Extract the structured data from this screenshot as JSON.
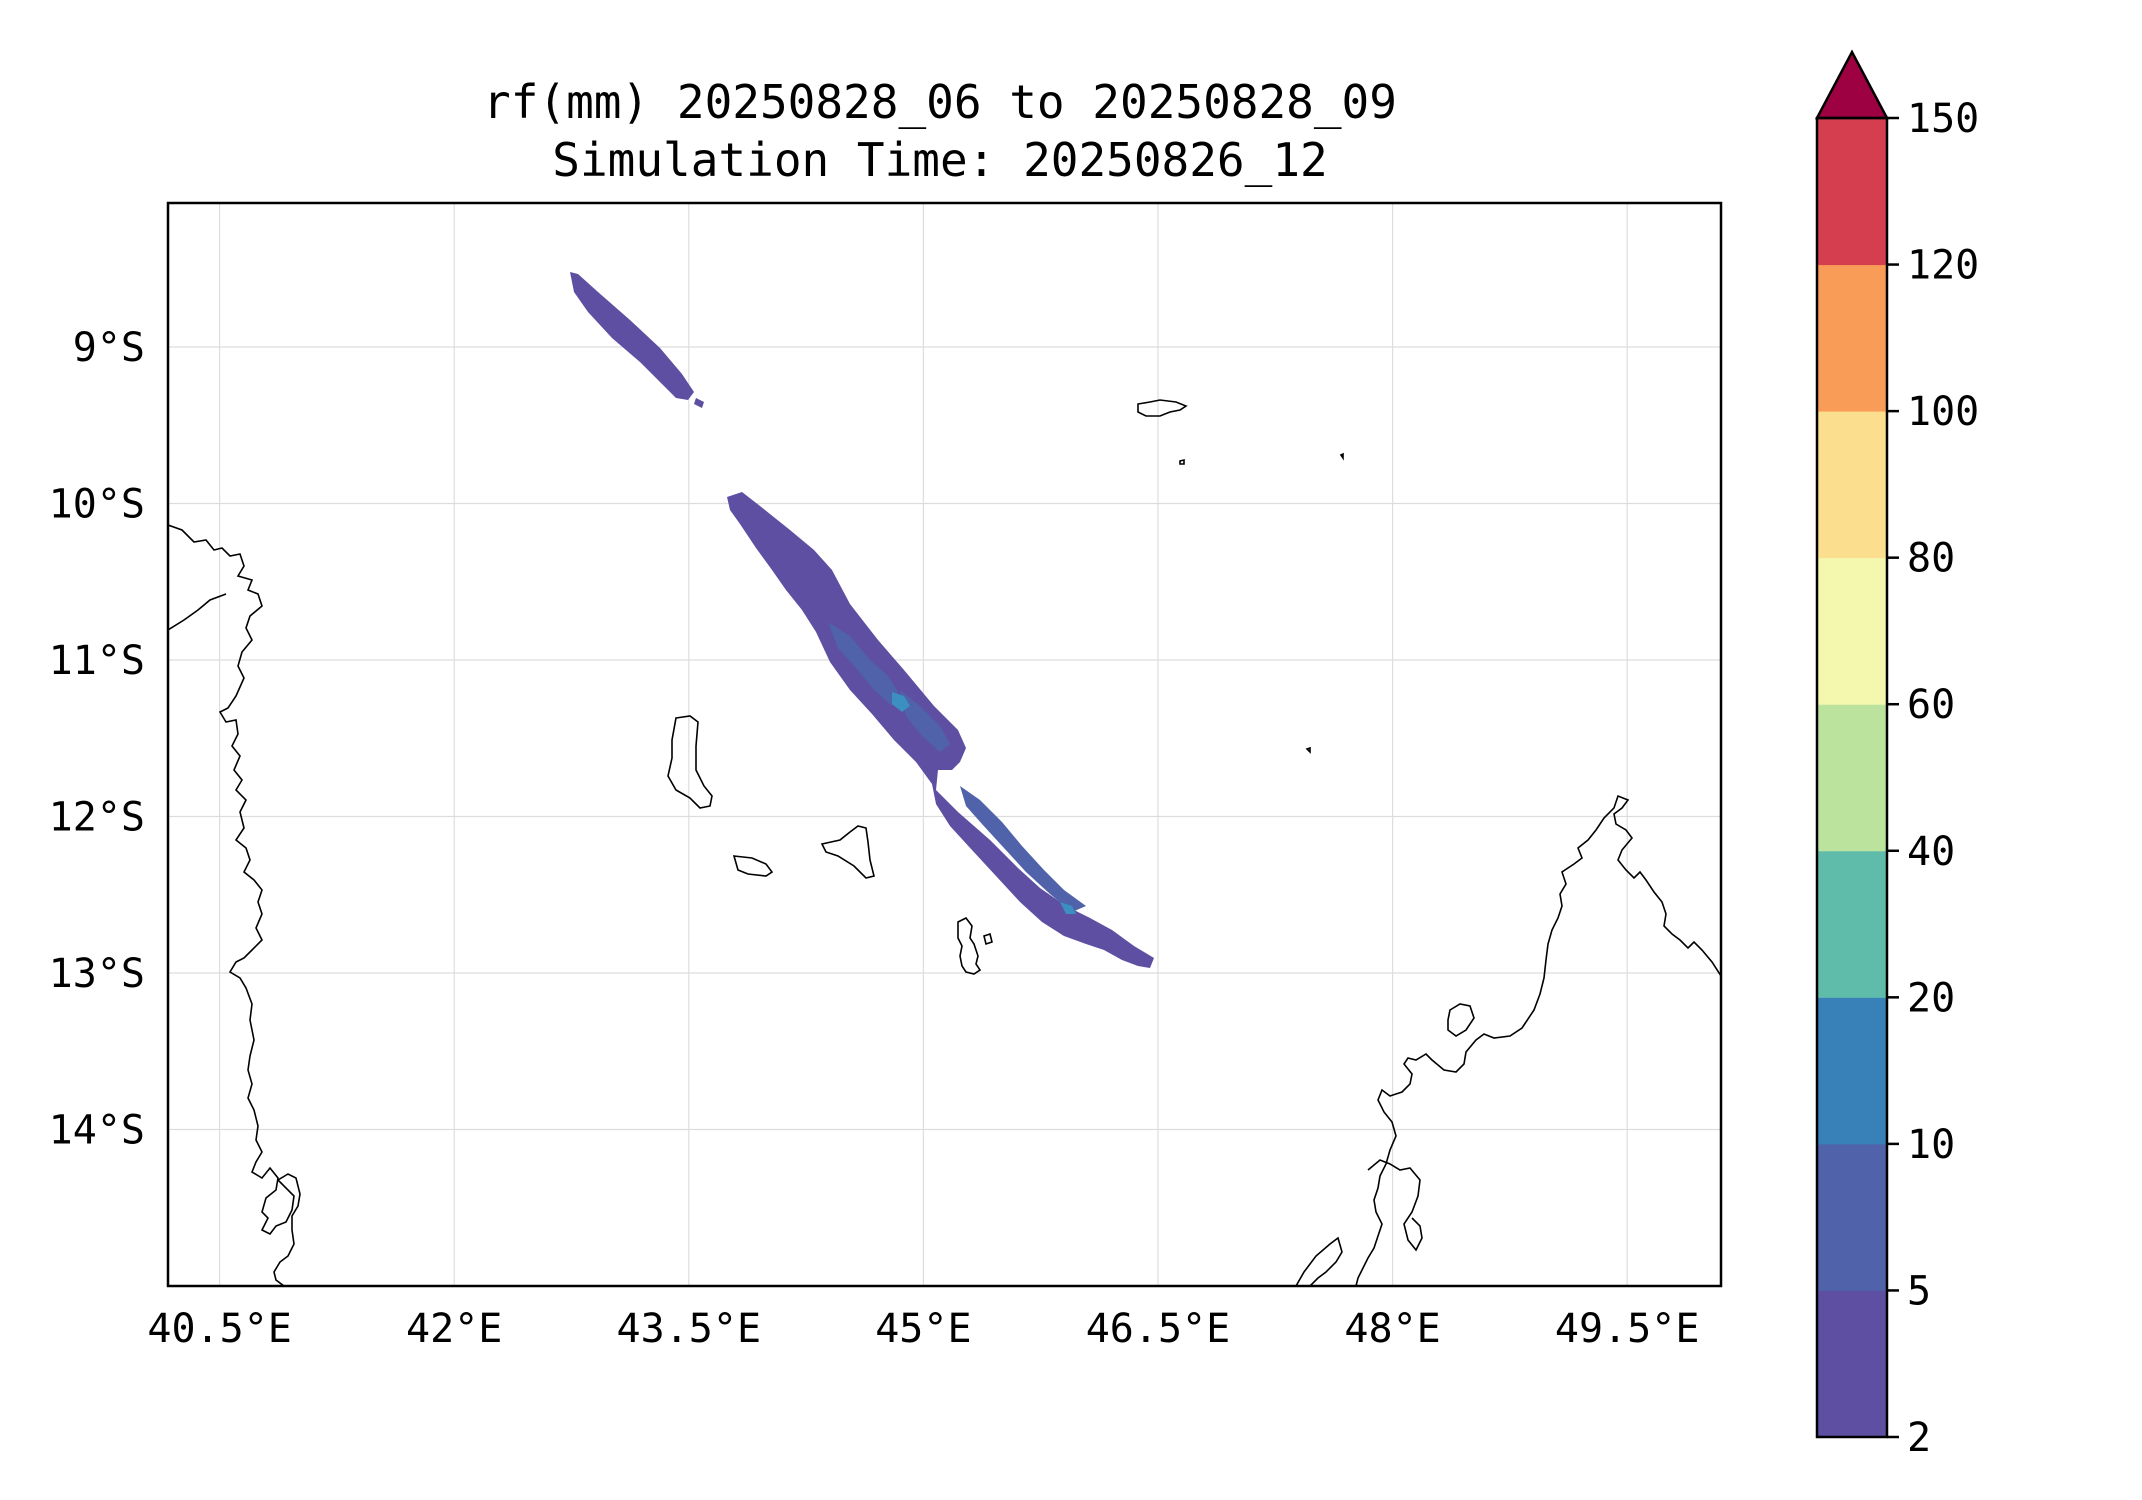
{
  "title": {
    "line1": "rf(mm) 20250828_06 to 20250828_09",
    "line2": "Simulation Time: 20250826_12"
  },
  "map": {
    "lon_range": [
      40.17,
      50.1
    ],
    "lat_range": [
      -15.0,
      -8.08
    ],
    "lon_ticks": [
      40.5,
      42,
      43.5,
      45,
      46.5,
      48,
      49.5
    ],
    "lon_tick_labels": [
      "40.5°E",
      "42°E",
      "43.5°E",
      "45°E",
      "46.5°E",
      "48°E",
      "49.5°E"
    ],
    "lat_ticks": [
      -9,
      -10,
      -11,
      -12,
      -13,
      -14
    ],
    "lat_tick_labels": [
      "9°S",
      "10°S",
      "11°S",
      "12°S",
      "13°S",
      "14°S"
    ],
    "grid": true,
    "coastline_color": "#000000",
    "rain_band_colors": {
      "low": "#5e4fa2",
      "mid": "#4f62aa",
      "core": "#3b8fc2"
    }
  },
  "colorbar": {
    "levels": [
      2,
      5,
      10,
      20,
      40,
      60,
      80,
      100,
      120,
      150
    ],
    "level_labels": [
      "2",
      "5",
      "10",
      "20",
      "40",
      "60",
      "80",
      "100",
      "120",
      "150"
    ],
    "colors": [
      "#5e4fa2",
      "#4f62aa",
      "#3780b8",
      "#60bcaa",
      "#bce39e",
      "#f3f8ae",
      "#fbdf8f",
      "#f99c58",
      "#d53e4f"
    ],
    "extend_color": "#9e0142",
    "extend": "max"
  }
}
